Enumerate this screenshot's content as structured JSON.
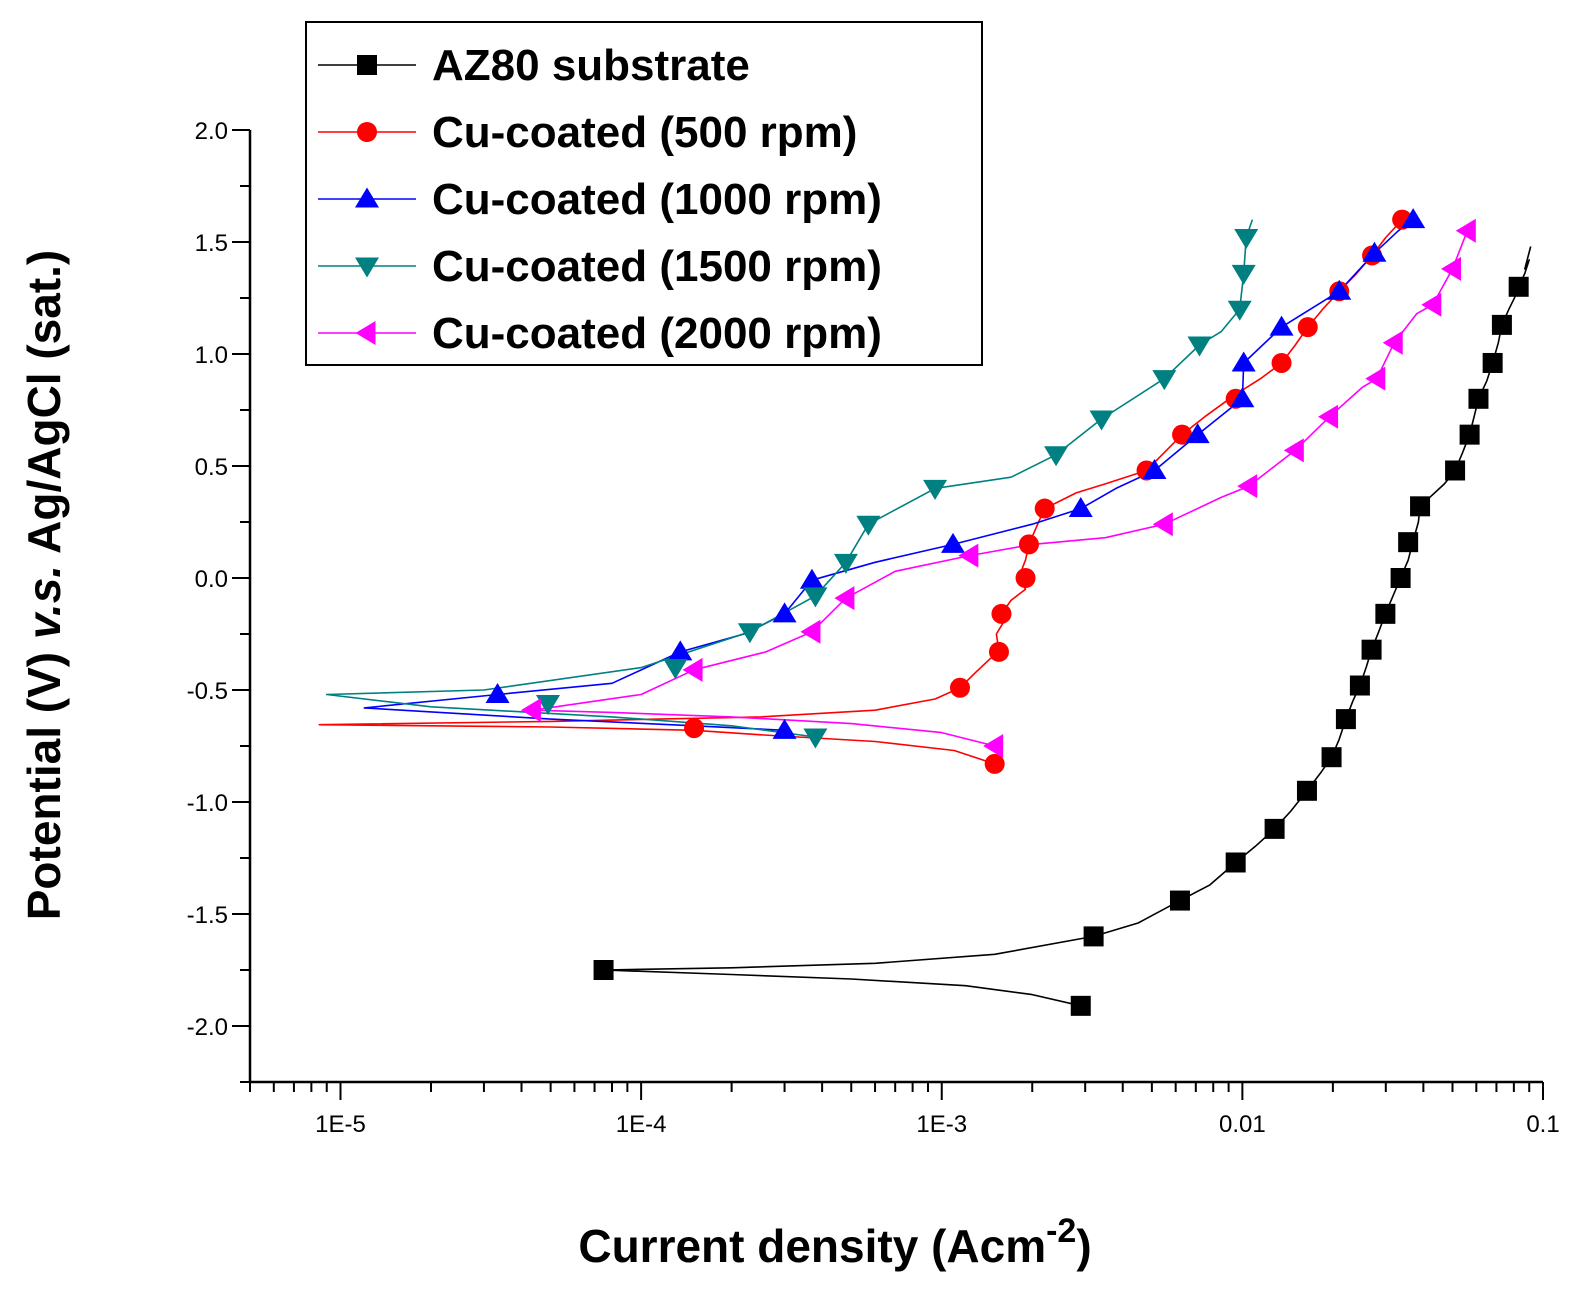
{
  "chart_data": {
    "type": "line",
    "title": "",
    "xlabel": "Current density (Acm",
    "xlabel_sup": "-2",
    "xlabel_close": ")",
    "ylabel_prefix": "Potential (V) ",
    "ylabel_italic": "v.s.",
    "ylabel_suffix": " Ag/AgCl (sat.)",
    "xscale": "log",
    "xlim": [
      5e-06,
      0.1
    ],
    "ylim": [
      -2.25,
      2.0
    ],
    "xticks": [
      {
        "value": 1e-05,
        "label": "1E-5"
      },
      {
        "value": 0.0001,
        "label": "1E-4"
      },
      {
        "value": 0.001,
        "label": "1E-3"
      },
      {
        "value": 0.01,
        "label": "0.01"
      },
      {
        "value": 0.1,
        "label": "0.1"
      }
    ],
    "yticks": [
      {
        "value": 2.0,
        "label": "2.0"
      },
      {
        "value": 1.5,
        "label": "1.5"
      },
      {
        "value": 1.0,
        "label": "1.0"
      },
      {
        "value": 0.5,
        "label": "0.5"
      },
      {
        "value": 0.0,
        "label": "0.0"
      },
      {
        "value": -0.5,
        "label": "-0.5"
      },
      {
        "value": -1.0,
        "label": "-1.0"
      },
      {
        "value": -1.5,
        "label": "-1.5"
      },
      {
        "value": -2.0,
        "label": "-2.0"
      }
    ],
    "legend_position": "top-left",
    "series": [
      {
        "name": "AZ80 substrate",
        "color": "#000000",
        "marker": "square",
        "line": [
          [
            0.0029,
            -1.91
          ],
          [
            0.002,
            -1.86
          ],
          [
            0.0012,
            -1.82
          ],
          [
            0.0005,
            -1.79
          ],
          [
            0.0002,
            -1.77
          ],
          [
            7.5e-05,
            -1.75
          ],
          [
            0.0002,
            -1.74
          ],
          [
            0.0006,
            -1.72
          ],
          [
            0.0015,
            -1.68
          ],
          [
            0.0032,
            -1.6
          ],
          [
            0.0045,
            -1.54
          ],
          [
            0.0062,
            -1.44
          ],
          [
            0.0078,
            -1.37
          ],
          [
            0.0095,
            -1.27
          ],
          [
            0.011,
            -1.2
          ],
          [
            0.0128,
            -1.12
          ],
          [
            0.0145,
            -1.04
          ],
          [
            0.0164,
            -0.95
          ],
          [
            0.0182,
            -0.87
          ],
          [
            0.0198,
            -0.8
          ],
          [
            0.021,
            -0.72
          ],
          [
            0.0221,
            -0.63
          ],
          [
            0.0233,
            -0.55
          ],
          [
            0.0246,
            -0.48
          ],
          [
            0.0258,
            -0.4
          ],
          [
            0.0269,
            -0.32
          ],
          [
            0.0284,
            -0.24
          ],
          [
            0.0299,
            -0.16
          ],
          [
            0.0317,
            -0.08
          ],
          [
            0.0336,
            0.0
          ],
          [
            0.0356,
            0.08
          ],
          [
            0.0369,
            0.16
          ],
          [
            0.0385,
            0.25
          ],
          [
            0.039,
            0.32
          ],
          [
            0.042,
            0.36
          ],
          [
            0.047,
            0.42
          ],
          [
            0.051,
            0.48
          ],
          [
            0.054,
            0.56
          ],
          [
            0.057,
            0.64
          ],
          [
            0.059,
            0.72
          ],
          [
            0.061,
            0.8
          ],
          [
            0.065,
            0.88
          ],
          [
            0.068,
            0.96
          ],
          [
            0.071,
            1.05
          ],
          [
            0.073,
            1.13
          ],
          [
            0.077,
            1.2
          ],
          [
            0.081,
            1.26
          ],
          [
            0.083,
            1.3
          ],
          [
            0.087,
            1.36
          ],
          [
            0.09,
            1.42
          ],
          [
            0.087,
            1.38
          ],
          [
            0.091,
            1.48
          ]
        ],
        "markers": [
          [
            0.0029,
            -1.91
          ],
          [
            7.5e-05,
            -1.75
          ],
          [
            0.0032,
            -1.6
          ],
          [
            0.0062,
            -1.44
          ],
          [
            0.0095,
            -1.27
          ],
          [
            0.0128,
            -1.12
          ],
          [
            0.0164,
            -0.95
          ],
          [
            0.0198,
            -0.8
          ],
          [
            0.0221,
            -0.63
          ],
          [
            0.0246,
            -0.48
          ],
          [
            0.0269,
            -0.32
          ],
          [
            0.0299,
            -0.16
          ],
          [
            0.0336,
            0.0
          ],
          [
            0.0356,
            0.16
          ],
          [
            0.039,
            0.32
          ],
          [
            0.051,
            0.48
          ],
          [
            0.057,
            0.64
          ],
          [
            0.061,
            0.8
          ],
          [
            0.068,
            0.96
          ],
          [
            0.073,
            1.13
          ],
          [
            0.083,
            1.3
          ]
        ]
      },
      {
        "name": "Cu-coated (500 rpm)",
        "color": "#ff0000",
        "marker": "circle",
        "line": [
          [
            0.0015,
            -0.83
          ],
          [
            0.0011,
            -0.77
          ],
          [
            0.0006,
            -0.73
          ],
          [
            0.00025,
            -0.7
          ],
          [
            0.00015,
            -0.68
          ],
          [
            5e-05,
            -0.665
          ],
          [
            8.5e-06,
            -0.655
          ],
          [
            5e-05,
            -0.64
          ],
          [
            0.00025,
            -0.62
          ],
          [
            0.0006,
            -0.59
          ],
          [
            0.00095,
            -0.54
          ],
          [
            0.00115,
            -0.49
          ],
          [
            0.0013,
            -0.42
          ],
          [
            0.00145,
            -0.36
          ],
          [
            0.00155,
            -0.33
          ],
          [
            0.00152,
            -0.25
          ],
          [
            0.0016,
            -0.2
          ],
          [
            0.00158,
            -0.16
          ],
          [
            0.0017,
            -0.1
          ],
          [
            0.0019,
            -0.05
          ],
          [
            0.0018,
            0.0
          ],
          [
            0.0019,
            0.08
          ],
          [
            0.00195,
            0.15
          ],
          [
            0.0021,
            0.25
          ],
          [
            0.0022,
            0.31
          ],
          [
            0.0028,
            0.38
          ],
          [
            0.0035,
            0.42
          ],
          [
            0.0048,
            0.48
          ],
          [
            0.0055,
            0.56
          ],
          [
            0.0063,
            0.64
          ],
          [
            0.0075,
            0.72
          ],
          [
            0.0095,
            0.82
          ],
          [
            0.0115,
            0.89
          ],
          [
            0.0135,
            0.96
          ],
          [
            0.015,
            1.04
          ],
          [
            0.0165,
            1.12
          ],
          [
            0.0185,
            1.2
          ],
          [
            0.021,
            1.28
          ],
          [
            0.024,
            1.36
          ],
          [
            0.027,
            1.44
          ],
          [
            0.03,
            1.52
          ],
          [
            0.034,
            1.6
          ],
          [
            0.037,
            1.6
          ]
        ],
        "markers": [
          [
            0.0015,
            -0.83
          ],
          [
            0.00015,
            -0.67
          ],
          [
            0.00115,
            -0.49
          ],
          [
            0.00155,
            -0.33
          ],
          [
            0.00158,
            -0.16
          ],
          [
            0.0019,
            0.0
          ],
          [
            0.00195,
            0.15
          ],
          [
            0.0022,
            0.31
          ],
          [
            0.0048,
            0.48
          ],
          [
            0.0063,
            0.64
          ],
          [
            0.0095,
            0.8
          ],
          [
            0.0135,
            0.96
          ],
          [
            0.0165,
            1.12
          ],
          [
            0.021,
            1.28
          ],
          [
            0.027,
            1.44
          ],
          [
            0.034,
            1.6
          ]
        ]
      },
      {
        "name": "Cu-coated (1000 rpm)",
        "color": "#0000ff",
        "marker": "triangle-up",
        "line": [
          [
            0.0003,
            -0.68
          ],
          [
            0.00015,
            -0.66
          ],
          [
            5e-05,
            -0.63
          ],
          [
            1.2e-05,
            -0.58
          ],
          [
            3.33e-05,
            -0.52
          ],
          [
            8e-05,
            -0.47
          ],
          [
            0.000135,
            -0.33
          ],
          [
            0.00022,
            -0.25
          ],
          [
            0.0003,
            -0.16
          ],
          [
            0.00037,
            -0.01
          ],
          [
            0.0006,
            0.07
          ],
          [
            0.00109,
            0.15
          ],
          [
            0.002,
            0.24
          ],
          [
            0.0029,
            0.31
          ],
          [
            0.0038,
            0.4
          ],
          [
            0.0051,
            0.48
          ],
          [
            0.0071,
            0.64
          ],
          [
            0.01,
            0.8
          ],
          [
            0.0101,
            0.96
          ],
          [
            0.0135,
            1.12
          ],
          [
            0.021,
            1.28
          ],
          [
            0.0275,
            1.45
          ],
          [
            0.033,
            1.55
          ],
          [
            0.037,
            1.6
          ],
          [
            0.033,
            1.58
          ],
          [
            0.038,
            1.61
          ]
        ],
        "markers": [
          [
            0.0003,
            -0.68
          ],
          [
            3.33e-05,
            -0.52
          ],
          [
            0.000135,
            -0.33
          ],
          [
            0.0003,
            -0.16
          ],
          [
            0.00037,
            -0.01
          ],
          [
            0.00109,
            0.15
          ],
          [
            0.0029,
            0.31
          ],
          [
            0.0051,
            0.48
          ],
          [
            0.0071,
            0.64
          ],
          [
            0.01,
            0.8
          ],
          [
            0.0101,
            0.96
          ],
          [
            0.0135,
            1.12
          ],
          [
            0.021,
            1.28
          ],
          [
            0.0275,
            1.45
          ],
          [
            0.037,
            1.6
          ]
        ]
      },
      {
        "name": "Cu-coated (1500 rpm)",
        "color": "#008080",
        "marker": "triangle-down",
        "line": [
          [
            0.00038,
            -0.71
          ],
          [
            0.0002,
            -0.66
          ],
          [
            8e-05,
            -0.62
          ],
          [
            2e-05,
            -0.575
          ],
          [
            9e-06,
            -0.52
          ],
          [
            3e-05,
            -0.5
          ],
          [
            0.0001,
            -0.4
          ],
          [
            0.00023,
            -0.24
          ],
          [
            0.00038,
            -0.08
          ],
          [
            0.00048,
            0.07
          ],
          [
            0.00057,
            0.24
          ],
          [
            0.00095,
            0.4
          ],
          [
            0.0017,
            0.45
          ],
          [
            0.0024,
            0.55
          ],
          [
            0.0034,
            0.71
          ],
          [
            0.0055,
            0.89
          ],
          [
            0.0072,
            1.04
          ],
          [
            0.0085,
            1.1
          ],
          [
            0.0098,
            1.2
          ],
          [
            0.0101,
            1.36
          ],
          [
            0.0103,
            1.52
          ],
          [
            0.0108,
            1.6
          ]
        ],
        "markers": [
          [
            0.00038,
            -0.71
          ],
          [
            4.9e-05,
            -0.56
          ],
          [
            0.00013,
            -0.4
          ],
          [
            0.00023,
            -0.24
          ],
          [
            0.00038,
            -0.08
          ],
          [
            0.00048,
            0.07
          ],
          [
            0.00057,
            0.24
          ],
          [
            0.00095,
            0.4
          ],
          [
            0.0024,
            0.55
          ],
          [
            0.0034,
            0.71
          ],
          [
            0.0055,
            0.89
          ],
          [
            0.0072,
            1.04
          ],
          [
            0.0098,
            1.2
          ],
          [
            0.0101,
            1.36
          ],
          [
            0.0103,
            1.52
          ]
        ]
      },
      {
        "name": "Cu-coated (2000 rpm)",
        "color": "#ff00ff",
        "marker": "triangle-left",
        "line": [
          [
            0.0015,
            -0.75
          ],
          [
            0.001,
            -0.69
          ],
          [
            0.0005,
            -0.65
          ],
          [
            0.0002,
            -0.62
          ],
          [
            8e-05,
            -0.6
          ],
          [
            4.35e-05,
            -0.59
          ],
          [
            0.0001,
            -0.52
          ],
          [
            0.00015,
            -0.41
          ],
          [
            0.00026,
            -0.33
          ],
          [
            0.00037,
            -0.24
          ],
          [
            0.00048,
            -0.09
          ],
          [
            0.0007,
            0.03
          ],
          [
            0.00124,
            0.1
          ],
          [
            0.002,
            0.15
          ],
          [
            0.0035,
            0.18
          ],
          [
            0.0055,
            0.24
          ],
          [
            0.0085,
            0.36
          ],
          [
            0.0105,
            0.41
          ],
          [
            0.015,
            0.57
          ],
          [
            0.0195,
            0.72
          ],
          [
            0.025,
            0.85
          ],
          [
            0.028,
            0.89
          ],
          [
            0.032,
            1.05
          ],
          [
            0.038,
            1.18
          ],
          [
            0.043,
            1.22
          ],
          [
            0.05,
            1.38
          ],
          [
            0.056,
            1.55
          ],
          [
            0.058,
            1.58
          ]
        ],
        "markers": [
          [
            0.0015,
            -0.75
          ],
          [
            4.35e-05,
            -0.59
          ],
          [
            0.00015,
            -0.41
          ],
          [
            0.00037,
            -0.24
          ],
          [
            0.00048,
            -0.09
          ],
          [
            0.00124,
            0.1
          ],
          [
            0.0055,
            0.24
          ],
          [
            0.0105,
            0.41
          ],
          [
            0.015,
            0.57
          ],
          [
            0.0195,
            0.72
          ],
          [
            0.028,
            0.89
          ],
          [
            0.032,
            1.05
          ],
          [
            0.043,
            1.22
          ],
          [
            0.05,
            1.38
          ],
          [
            0.056,
            1.55
          ]
        ]
      }
    ]
  }
}
